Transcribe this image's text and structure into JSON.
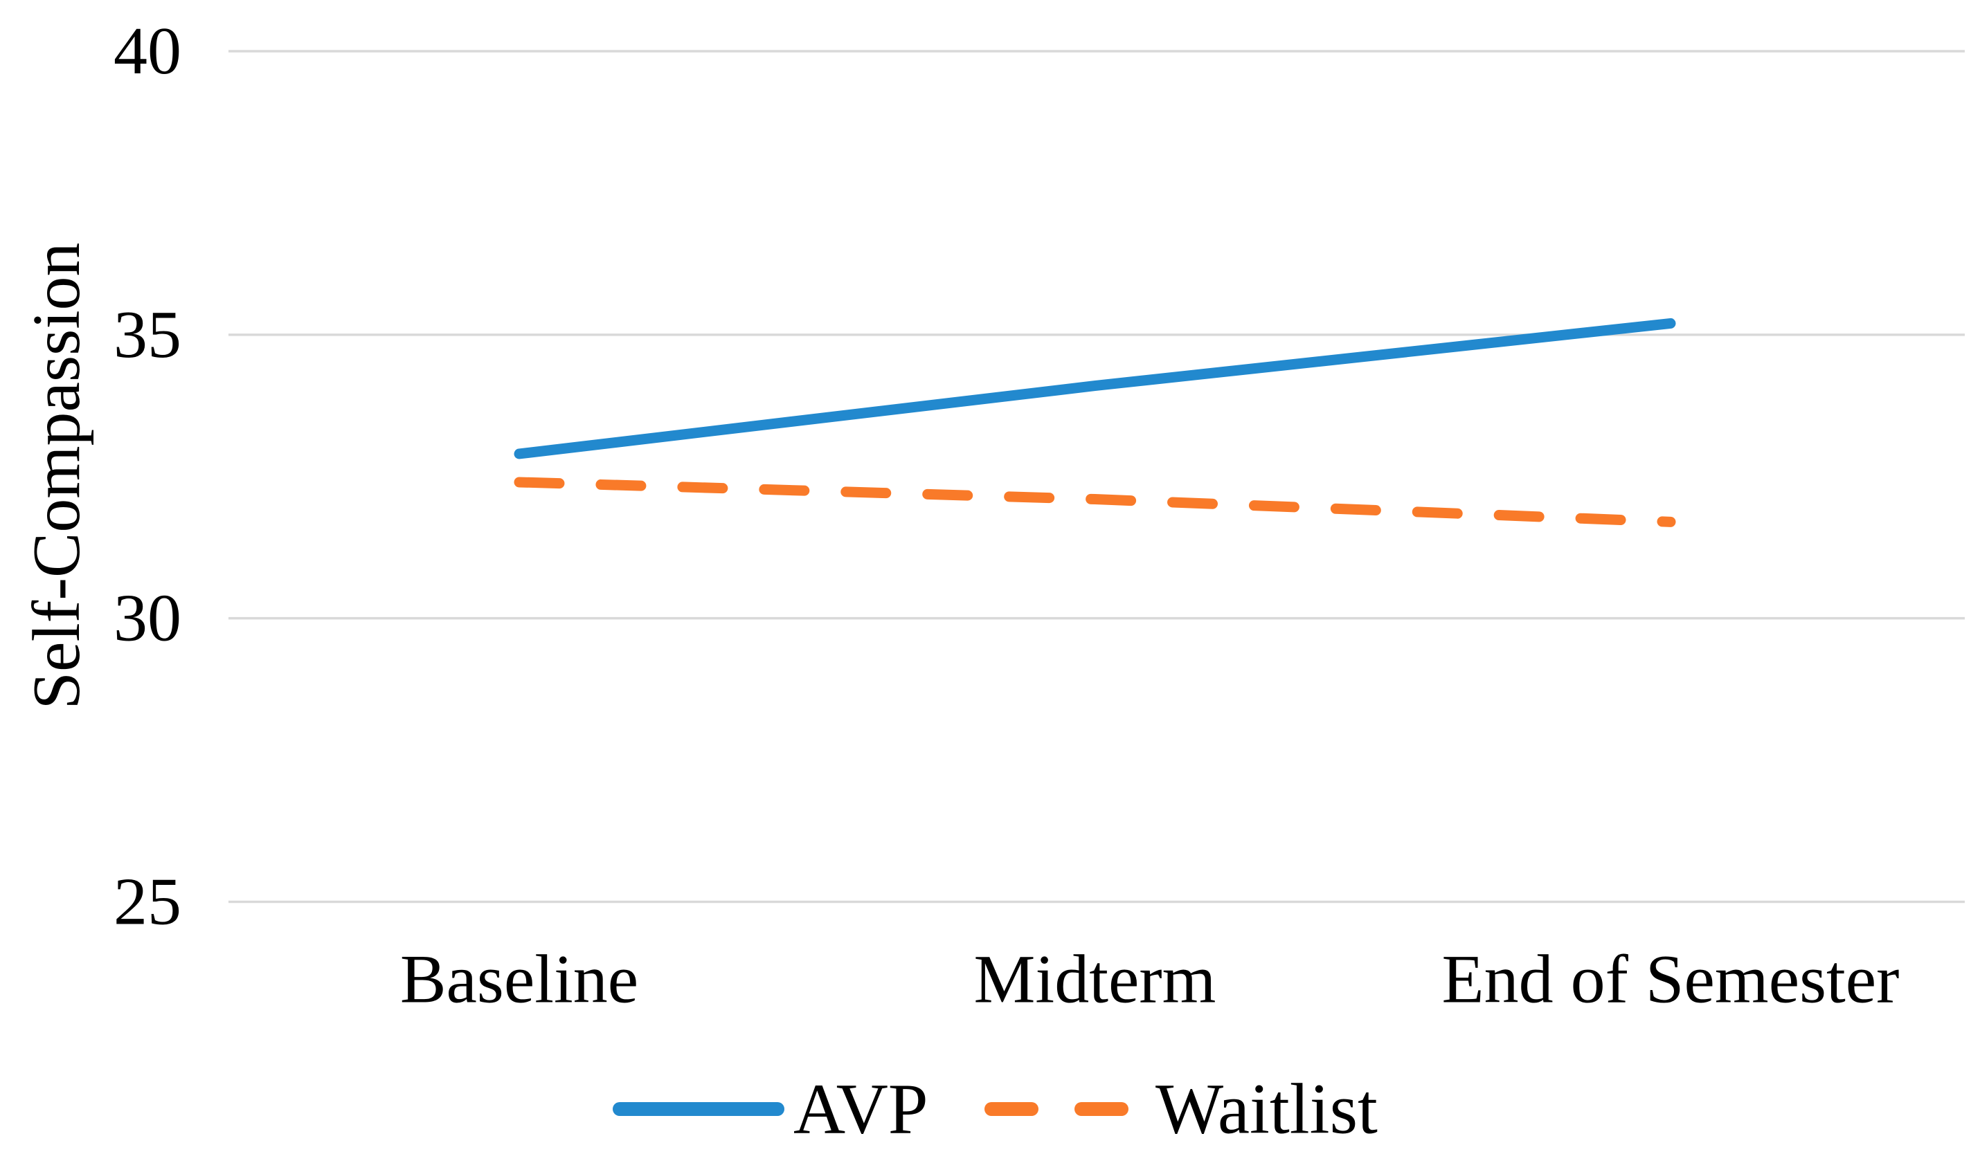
{
  "figure": {
    "background_color": "#ffffff",
    "text_color": "#000000",
    "gridline_color": "#d9d9d9"
  },
  "chart_data": {
    "type": "line",
    "title": "",
    "xlabel": "",
    "ylabel": "Self-Compassion",
    "categories": [
      "Baseline",
      "Midterm",
      "End of Semester"
    ],
    "series": [
      {
        "name": "AVP",
        "values": [
          32.9,
          34.1,
          35.2
        ],
        "color": "#2289ce",
        "style": "solid"
      },
      {
        "name": "Waitlist",
        "values": [
          32.4,
          32.1,
          31.7
        ],
        "color": "#f97a29",
        "style": "dashed"
      }
    ],
    "ylim": [
      25,
      40
    ],
    "yticks": [
      40,
      35,
      30,
      25
    ],
    "ytick_labels": [
      "40",
      "35",
      "30",
      "25"
    ],
    "grid": "horizontal-only",
    "legend_position": "bottom-center"
  }
}
